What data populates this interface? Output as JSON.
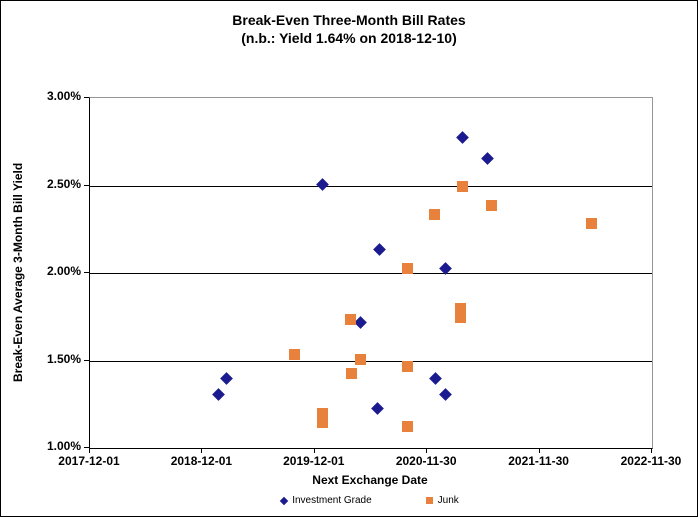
{
  "title": {
    "line1": "Break-Even Three-Month Bill Rates",
    "line2": "(n.b.: Yield 1.64% on 2018-12-10)"
  },
  "chart_data": {
    "type": "scatter",
    "title": "Break-Even Three-Month Bill Rates",
    "subtitle": "(n.b.: Yield 1.64% on 2018-12-10)",
    "xlabel": "Next Exchange Date",
    "ylabel": "Break-Even Average 3-Month Bill Yield",
    "xlim": [
      "2017-12-01",
      "2022-11-30"
    ],
    "ylim": [
      1.0,
      3.0
    ],
    "x_tick_labels": [
      "2017-12-01",
      "2018-12-01",
      "2019-12-01",
      "2020-11-30",
      "2021-11-30",
      "2022-11-30"
    ],
    "y_tick_labels": [
      "3.00%",
      "2.50%",
      "2.00%",
      "1.50%",
      "1.00%"
    ],
    "y_tick_values": [
      3.0,
      2.5,
      2.0,
      1.5,
      1.0
    ],
    "grid": "horizontal",
    "legend_position": "bottom",
    "series": [
      {
        "name": "Investment Grade",
        "marker": "diamond",
        "color": "#1B1B8F",
        "points": [
          {
            "date": "2019-01-27",
            "yield": 1.3
          },
          {
            "date": "2019-02-22",
            "yield": 1.39
          },
          {
            "date": "2019-12-30",
            "yield": 2.5
          },
          {
            "date": "2020-05-02",
            "yield": 1.71
          },
          {
            "date": "2020-06-26",
            "yield": 1.22
          },
          {
            "date": "2020-06-30",
            "yield": 2.13
          },
          {
            "date": "2020-12-31",
            "yield": 1.39
          },
          {
            "date": "2021-01-31",
            "yield": 2.02
          },
          {
            "date": "2021-01-31",
            "yield": 1.3
          },
          {
            "date": "2021-03-29",
            "yield": 2.77
          },
          {
            "date": "2021-06-18",
            "yield": 2.65
          }
        ]
      },
      {
        "name": "Junk",
        "marker": "square",
        "color": "#E8813B",
        "points": [
          {
            "date": "2019-09-28",
            "yield": 1.53
          },
          {
            "date": "2019-12-30",
            "yield": 1.19
          },
          {
            "date": "2019-12-30",
            "yield": 1.14
          },
          {
            "date": "2020-03-28",
            "yield": 1.73
          },
          {
            "date": "2020-04-01",
            "yield": 1.42
          },
          {
            "date": "2020-05-02",
            "yield": 1.5
          },
          {
            "date": "2020-09-29",
            "yield": 2.02
          },
          {
            "date": "2020-09-29",
            "yield": 1.46
          },
          {
            "date": "2020-09-29",
            "yield": 1.12
          },
          {
            "date": "2020-12-28",
            "yield": 2.33
          },
          {
            "date": "2021-03-20",
            "yield": 1.79
          },
          {
            "date": "2021-03-20",
            "yield": 1.74
          },
          {
            "date": "2021-03-29",
            "yield": 2.49
          },
          {
            "date": "2021-07-01",
            "yield": 2.38
          },
          {
            "date": "2022-05-20",
            "yield": 2.28
          }
        ]
      }
    ]
  }
}
